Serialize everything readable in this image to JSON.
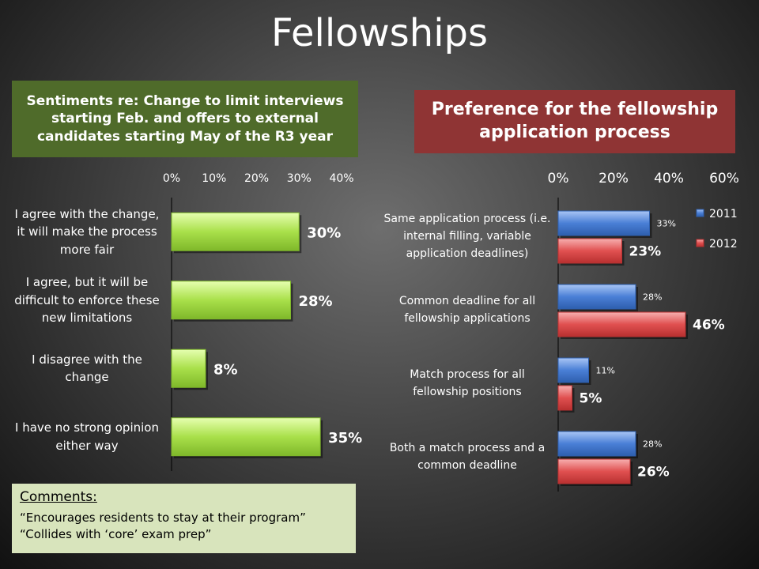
{
  "title": "Fellowships",
  "left_panel": {
    "title": "Sentiments re: Change to limit interviews starting Feb. and offers to external candidates starting May of the R3 year"
  },
  "right_panel": {
    "title": "Preference for the fellowship application process"
  },
  "comments": {
    "heading": "Comments:",
    "lines": [
      "“Encourages residents to stay at their program”",
      "“Collides with ‘core’ exam prep”"
    ]
  },
  "colors": {
    "left_bar": "#a9e04a",
    "series_2011": "#4a7fd6",
    "series_2012": "#e05050",
    "left_title_bg": "#4f6b2a",
    "right_title_bg": "#8f3434"
  },
  "chart_data": [
    {
      "type": "bar",
      "orientation": "horizontal",
      "categories": [
        "I agree with the change, it will make the process more fair",
        "I agree, but it will be difficult to enforce these new limitations",
        "I disagree with the change",
        "I have no strong opinion either way"
      ],
      "values": [
        30,
        28,
        8,
        35
      ],
      "data_labels": [
        "30%",
        "28%",
        "8%",
        "35%"
      ],
      "xlim": [
        0,
        40
      ],
      "ticks": [
        "0%",
        "10%",
        "20%",
        "30%",
        "40%"
      ],
      "axis_position": "top"
    },
    {
      "type": "bar",
      "orientation": "horizontal",
      "categories": [
        "Same application process (i.e. internal filling, variable application deadlines)",
        "Common deadline for all fellowship applications",
        "Match process for all fellowship positions",
        "Both a match process and a common deadline"
      ],
      "series": [
        {
          "name": "2011",
          "values": [
            33,
            28,
            11,
            28
          ],
          "labels": [
            "33%",
            "28%",
            "11%",
            "28%"
          ]
        },
        {
          "name": "2012",
          "values": [
            23,
            46,
            5,
            26
          ],
          "labels": [
            "23%",
            "46%",
            "5%",
            "26%"
          ]
        }
      ],
      "xlim": [
        0,
        60
      ],
      "ticks": [
        "0%",
        "20%",
        "40%",
        "60%"
      ],
      "axis_position": "top",
      "legend": "top-right"
    }
  ]
}
